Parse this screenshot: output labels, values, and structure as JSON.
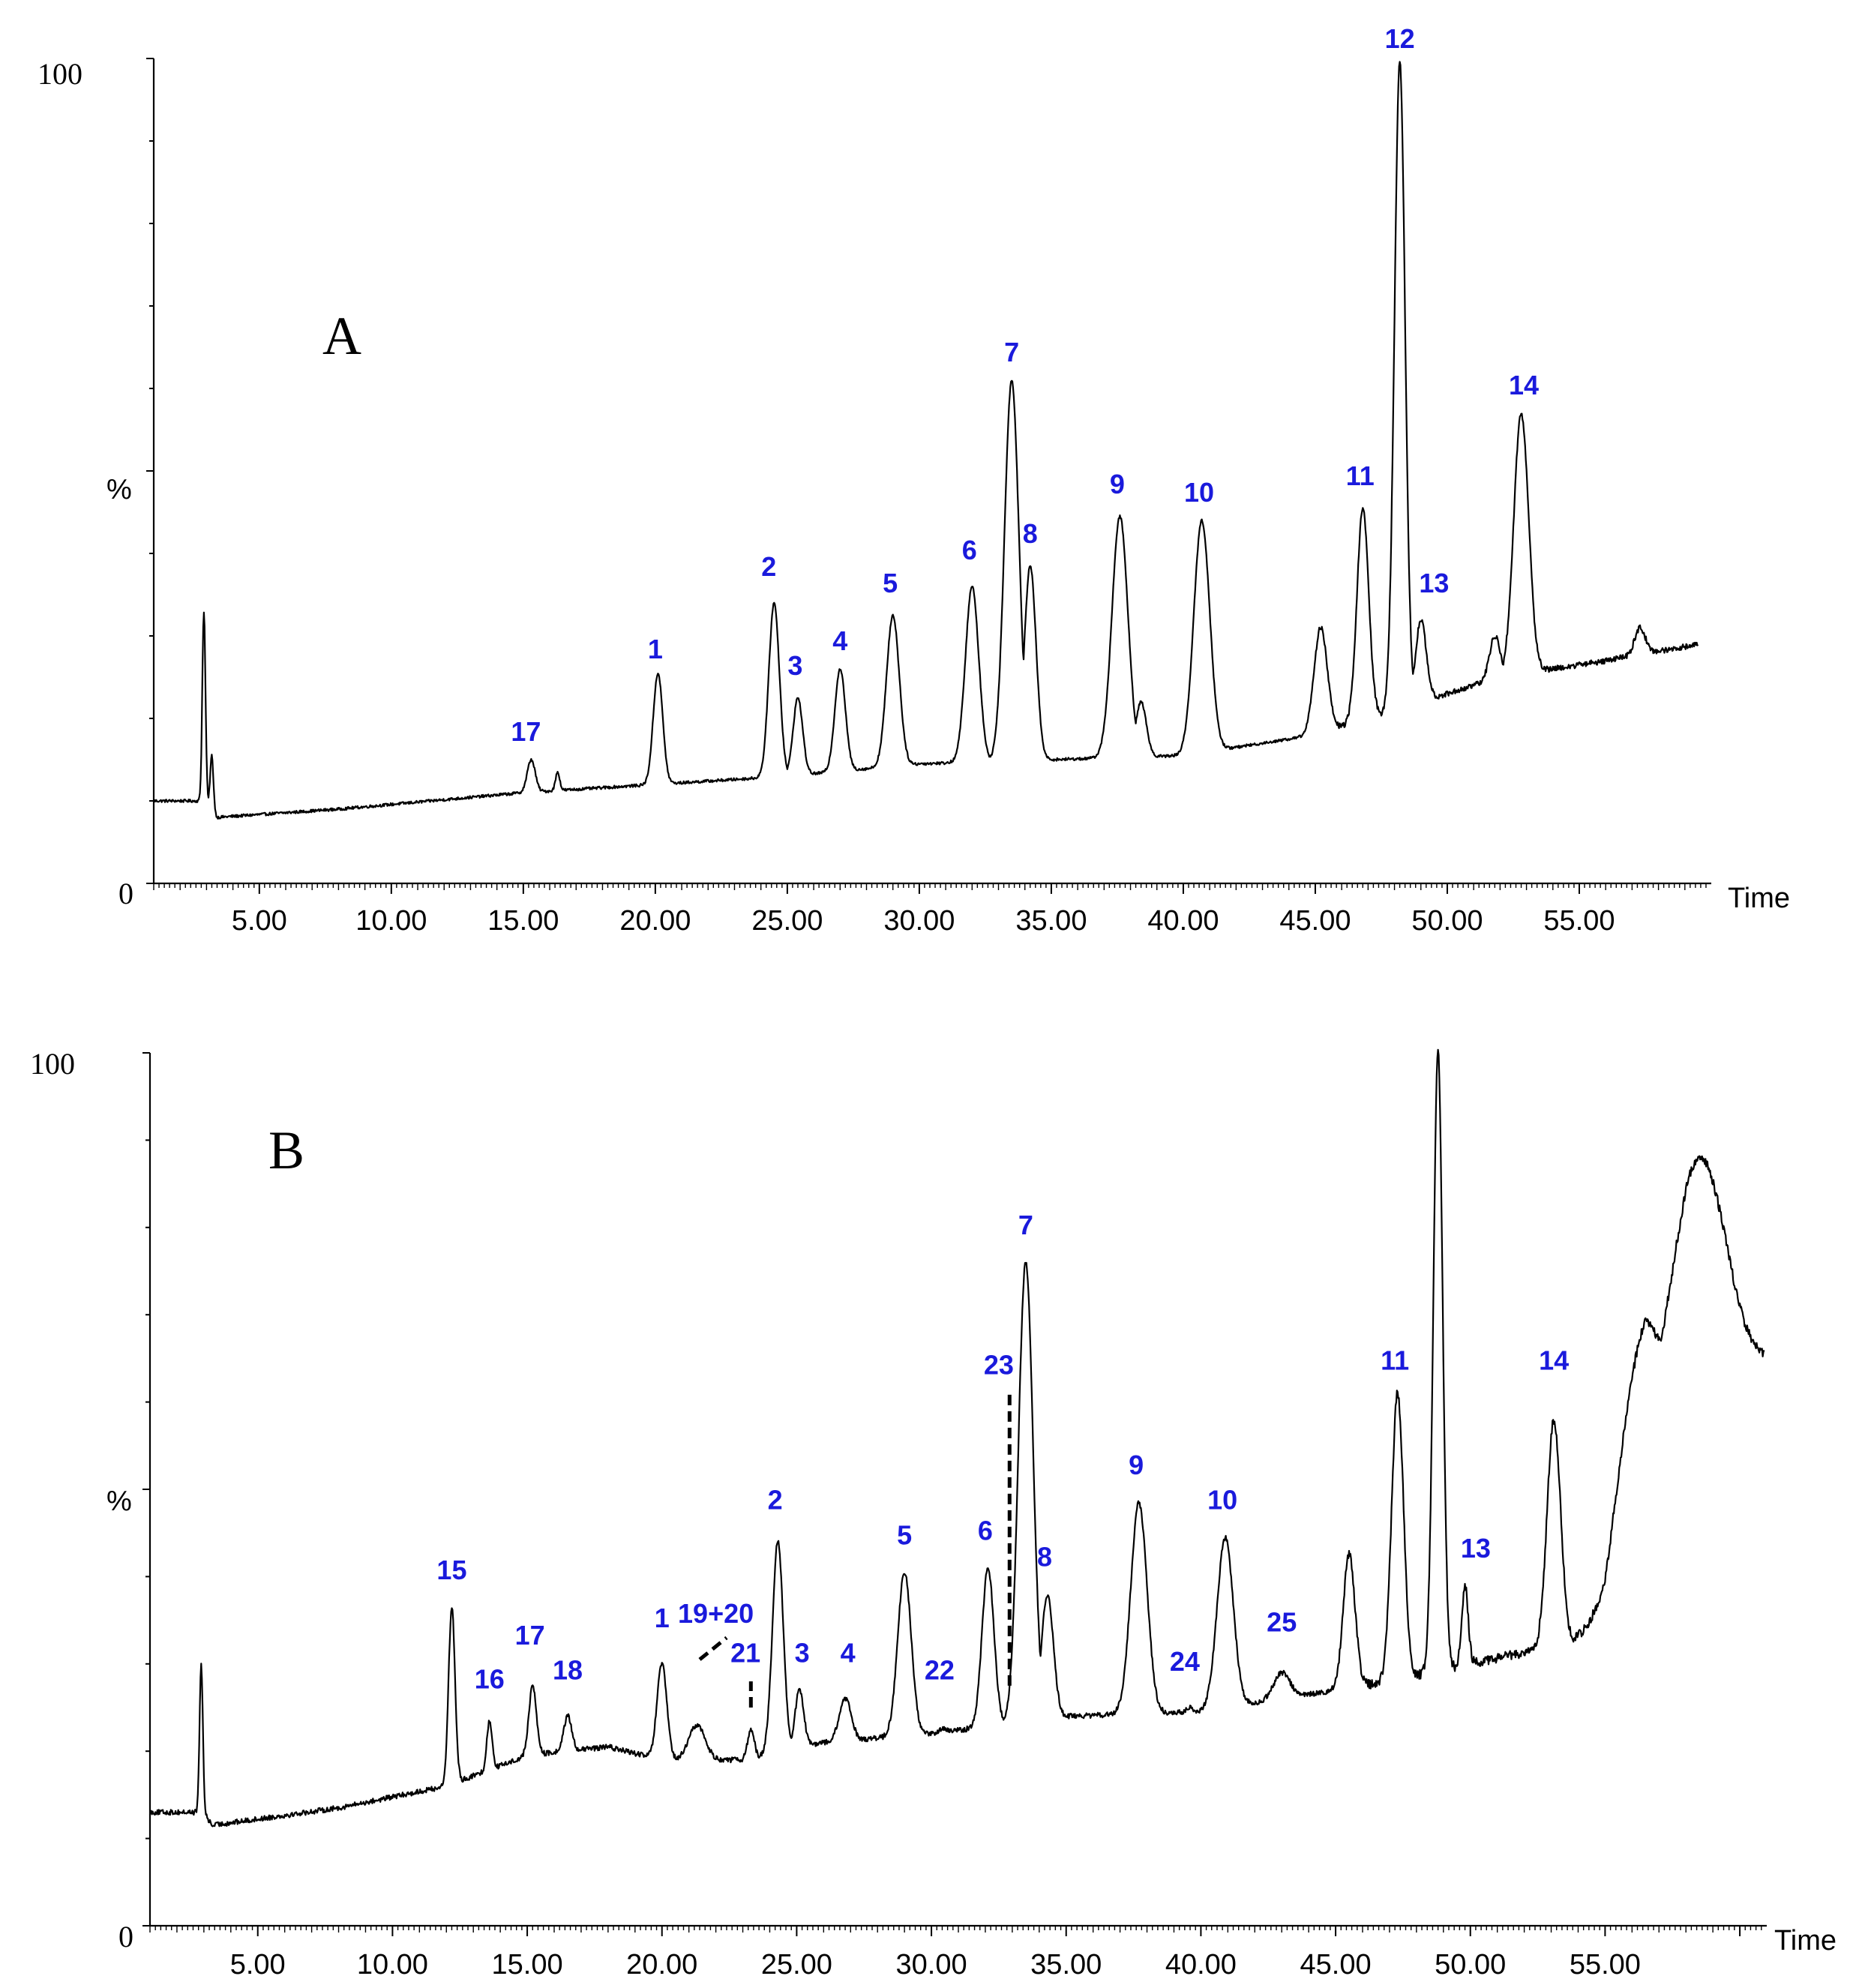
{
  "chart_data": [
    {
      "panel": "A",
      "type": "line",
      "xlabel": "Time",
      "ylabel": "%",
      "xticks": [
        "5.00",
        "10.00",
        "15.00",
        "20.00",
        "25.00",
        "30.00",
        "35.00",
        "40.00",
        "45.00",
        "50.00",
        "55.00"
      ],
      "yticks": [
        "0",
        "100"
      ],
      "xlim": [
        1,
        60
      ],
      "ylim": [
        0,
        100
      ],
      "series": [
        {
          "baseline": [
            [
              1,
              10
            ],
            [
              3,
              10
            ],
            [
              3.4,
              8
            ],
            [
              8,
              9
            ],
            [
              15,
              11
            ],
            [
              20,
              12
            ],
            [
              25,
              13
            ],
            [
              30,
              14.5
            ],
            [
              35,
              15
            ],
            [
              40,
              15.5
            ],
            [
              45,
              18
            ],
            [
              48,
              21
            ],
            [
              52,
              25
            ],
            [
              56,
              27
            ],
            [
              59.5,
              29
            ]
          ],
          "peaks": [
            {
              "t": 2.9,
              "h": 33,
              "w": 0.06
            },
            {
              "t": 3.2,
              "h": 15.5,
              "w": 0.06
            },
            {
              "t": 15.3,
              "h": 15,
              "w": 0.15
            },
            {
              "t": 16.3,
              "h": 13.5,
              "w": 0.08
            },
            {
              "t": 20.1,
              "h": 25.5,
              "w": 0.18
            },
            {
              "t": 24.5,
              "h": 34,
              "w": 0.2
            },
            {
              "t": 25.4,
              "h": 22.5,
              "w": 0.18
            },
            {
              "t": 27.0,
              "h": 26,
              "w": 0.2
            },
            {
              "t": 29.0,
              "h": 32.5,
              "w": 0.24
            },
            {
              "t": 32.0,
              "h": 36,
              "w": 0.25
            },
            {
              "t": 33.5,
              "h": 61,
              "w": 0.27
            },
            {
              "t": 34.2,
              "h": 38.5,
              "w": 0.22
            },
            {
              "t": 37.6,
              "h": 44.5,
              "w": 0.3
            },
            {
              "t": 38.4,
              "h": 22,
              "w": 0.2
            },
            {
              "t": 40.7,
              "h": 44,
              "w": 0.3
            },
            {
              "t": 45.2,
              "h": 31,
              "w": 0.25
            },
            {
              "t": 46.8,
              "h": 45.5,
              "w": 0.22
            },
            {
              "t": 48.2,
              "h": 99.5,
              "w": 0.2
            },
            {
              "t": 49.0,
              "h": 32,
              "w": 0.2
            },
            {
              "t": 51.8,
              "h": 30,
              "w": 0.2
            },
            {
              "t": 52.8,
              "h": 57,
              "w": 0.28
            },
            {
              "t": 53.7,
              "h": 26,
              "w": 0.1
            },
            {
              "t": 57.3,
              "h": 31,
              "w": 0.2
            }
          ]
        }
      ],
      "peak_labels": [
        {
          "text": "1",
          "t": 20.0,
          "y": 26
        },
        {
          "text": "2",
          "t": 24.3,
          "y": 36
        },
        {
          "text": "3",
          "t": 25.3,
          "y": 24
        },
        {
          "text": "4",
          "t": 27.0,
          "y": 27
        },
        {
          "text": "5",
          "t": 28.9,
          "y": 34
        },
        {
          "text": "6",
          "t": 31.9,
          "y": 38
        },
        {
          "text": "7",
          "t": 33.5,
          "y": 62
        },
        {
          "text": "8",
          "t": 34.2,
          "y": 40
        },
        {
          "text": "9",
          "t": 37.5,
          "y": 46
        },
        {
          "text": "10",
          "t": 40.6,
          "y": 45
        },
        {
          "text": "11",
          "t": 46.7,
          "y": 47
        },
        {
          "text": "12",
          "t": 48.2,
          "y": 100
        },
        {
          "text": "13",
          "t": 49.5,
          "y": 34
        },
        {
          "text": "14",
          "t": 52.9,
          "y": 58
        },
        {
          "text": "17",
          "t": 15.1,
          "y": 16
        }
      ]
    },
    {
      "panel": "B",
      "type": "line",
      "xlabel": "Time",
      "ylabel": "%",
      "xticks": [
        "5.00",
        "10.00",
        "15.00",
        "20.00",
        "25.00",
        "30.00",
        "35.00",
        "40.00",
        "45.00",
        "50.00",
        "55.00"
      ],
      "yticks": [
        "0",
        "100"
      ],
      "xlim": [
        1,
        61
      ],
      "ylim": [
        0,
        100
      ],
      "series": [
        {
          "baseline": [
            [
              1,
              13
            ],
            [
              3,
              13
            ],
            [
              3.3,
              11.5
            ],
            [
              8,
              13.5
            ],
            [
              12,
              16
            ],
            [
              15,
              19.5
            ],
            [
              18,
              20.5
            ],
            [
              20,
              19
            ],
            [
              23,
              19
            ],
            [
              26,
              21
            ],
            [
              30,
              22
            ],
            [
              35,
              24
            ],
            [
              40,
              24.5
            ],
            [
              45,
              27
            ],
            [
              47,
              28
            ],
            [
              50,
              30
            ],
            [
              53,
              32
            ],
            [
              55,
              33
            ],
            [
              56.5,
              55
            ],
            [
              58,
              60
            ],
            [
              60,
              62
            ],
            [
              60.9,
              64
            ]
          ],
          "peaks": [
            {
              "t": 2.9,
              "h": 30,
              "w": 0.06
            },
            {
              "t": 12.2,
              "h": 36.5,
              "w": 0.12
            },
            {
              "t": 13.6,
              "h": 23.5,
              "w": 0.1
            },
            {
              "t": 15.2,
              "h": 27.5,
              "w": 0.14
            },
            {
              "t": 16.5,
              "h": 24,
              "w": 0.15
            },
            {
              "t": 20.0,
              "h": 30,
              "w": 0.18
            },
            {
              "t": 21.3,
              "h": 23,
              "w": 0.3
            },
            {
              "t": 23.3,
              "h": 22.5,
              "w": 0.12
            },
            {
              "t": 24.3,
              "h": 44,
              "w": 0.2
            },
            {
              "t": 25.1,
              "h": 27,
              "w": 0.16
            },
            {
              "t": 26.8,
              "h": 26,
              "w": 0.22
            },
            {
              "t": 29.0,
              "h": 40.5,
              "w": 0.25
            },
            {
              "t": 30.4,
              "h": 22.5,
              "w": 0.15
            },
            {
              "t": 32.1,
              "h": 41,
              "w": 0.22
            },
            {
              "t": 32.9,
              "h": 26,
              "w": 0.1
            },
            {
              "t": 33.5,
              "h": 76,
              "w": 0.27
            },
            {
              "t": 34.3,
              "h": 38,
              "w": 0.22
            },
            {
              "t": 37.7,
              "h": 48.5,
              "w": 0.3
            },
            {
              "t": 39.6,
              "h": 25,
              "w": 0.15
            },
            {
              "t": 40.9,
              "h": 44.5,
              "w": 0.3
            },
            {
              "t": 43.0,
              "h": 29,
              "w": 0.3
            },
            {
              "t": 45.5,
              "h": 42.5,
              "w": 0.22
            },
            {
              "t": 47.3,
              "h": 61,
              "w": 0.22
            },
            {
              "t": 48.8,
              "h": 100,
              "w": 0.17
            },
            {
              "t": 49.8,
              "h": 39,
              "w": 0.12
            },
            {
              "t": 53.1,
              "h": 58,
              "w": 0.25
            },
            {
              "t": 56.2,
              "h": 66,
              "w": 0.9
            },
            {
              "t": 58.5,
              "h": 88,
              "w": 1.0
            }
          ]
        }
      ],
      "peak_labels": [
        {
          "text": "1",
          "t": 20.0,
          "y": 33
        },
        {
          "text": "2",
          "t": 24.2,
          "y": 46.5
        },
        {
          "text": "3",
          "t": 25.2,
          "y": 29
        },
        {
          "text": "4",
          "t": 26.9,
          "y": 29
        },
        {
          "text": "5",
          "t": 29.0,
          "y": 42.5
        },
        {
          "text": "6",
          "t": 32.0,
          "y": 43
        },
        {
          "text": "7",
          "t": 33.5,
          "y": 78
        },
        {
          "text": "8",
          "t": 34.2,
          "y": 40
        },
        {
          "text": "9",
          "t": 37.6,
          "y": 50.5
        },
        {
          "text": "10",
          "t": 40.8,
          "y": 46.5
        },
        {
          "text": "11",
          "t": 47.2,
          "y": 62.5
        },
        {
          "text": "13",
          "t": 50.2,
          "y": 41
        },
        {
          "text": "14",
          "t": 53.1,
          "y": 62.5
        },
        {
          "text": "15",
          "t": 12.2,
          "y": 38.5
        },
        {
          "text": "16",
          "t": 13.6,
          "y": 26
        },
        {
          "text": "17",
          "t": 15.1,
          "y": 31
        },
        {
          "text": "18",
          "t": 16.5,
          "y": 27
        },
        {
          "text": "19+20",
          "t": 22.0,
          "y": 33.5
        },
        {
          "text": "21",
          "t": 23.1,
          "y": 29
        },
        {
          "text": "22",
          "t": 30.3,
          "y": 27
        },
        {
          "text": "23",
          "t": 32.5,
          "y": 62
        },
        {
          "text": "24",
          "t": 39.4,
          "y": 28
        },
        {
          "text": "25",
          "t": 43.0,
          "y": 32.5
        }
      ],
      "leader_lines": [
        {
          "from": [
            21.4,
            30.5
          ],
          "to": [
            22.4,
            33.0
          ]
        },
        {
          "from": [
            23.3,
            25.0
          ],
          "to": [
            23.3,
            28.0
          ]
        },
        {
          "from": [
            32.9,
            27.5
          ],
          "to": [
            32.9,
            61.5
          ]
        }
      ]
    }
  ],
  "panels": {
    "A": {
      "letter": "A",
      "ylabel": "%",
      "xlabel": "Time",
      "y0": "0",
      "y100": "100"
    },
    "B": {
      "letter": "B",
      "ylabel": "%",
      "xlabel": "Time",
      "y0": "0",
      "y100": "100"
    }
  }
}
